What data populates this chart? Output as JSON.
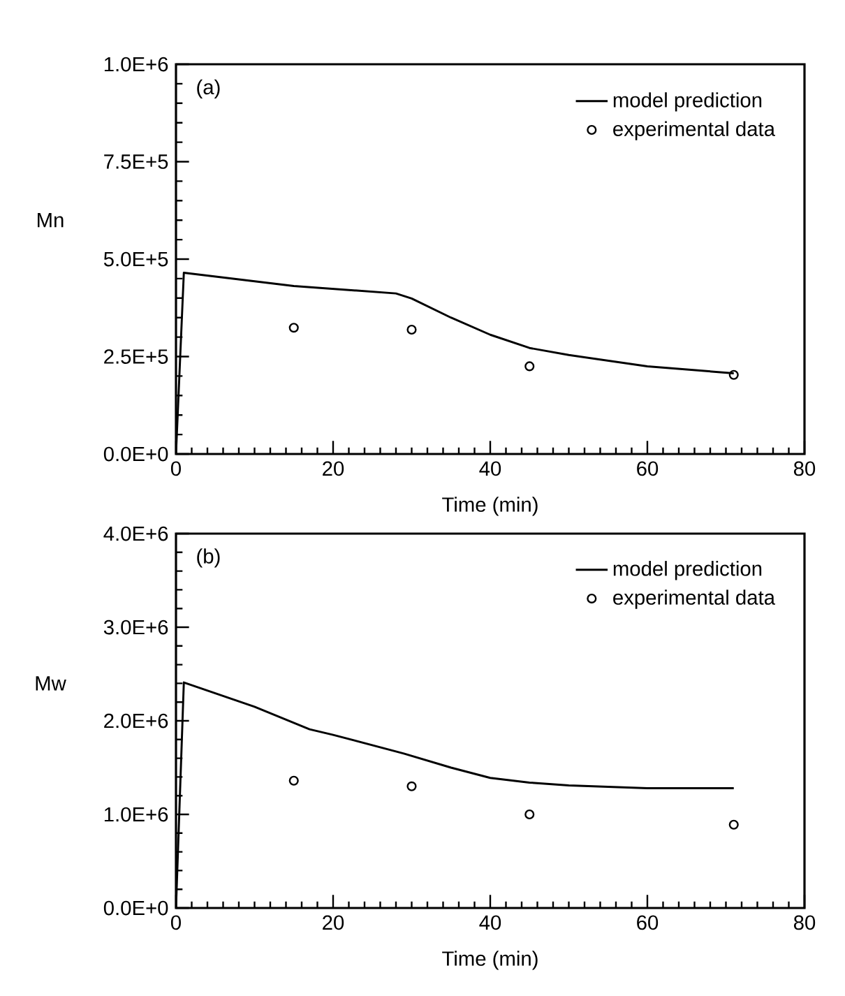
{
  "chart_data": [
    {
      "type": "line",
      "ylabel": "Mn",
      "xlabel": "Time (min)",
      "annotations": [
        "(a)"
      ],
      "legend": "top right",
      "grid": false,
      "xlim": [
        0,
        80
      ],
      "ylim": [
        0,
        1000000
      ],
      "xticks": [
        0,
        20,
        40,
        60,
        80
      ],
      "yticks": [
        {
          "value": 0,
          "label": "0.0E+0"
        },
        {
          "value": 250000,
          "label": "2.5E+5"
        },
        {
          "value": 500000,
          "label": "5.0E+5"
        },
        {
          "value": 750000,
          "label": "7.5E+5"
        },
        {
          "value": 1000000,
          "label": "1.0E+6"
        }
      ],
      "series": [
        {
          "name": "model prediction",
          "color": "#000000",
          "marker": "none",
          "line_style": "solid",
          "x": [
            0,
            1,
            15,
            28,
            30,
            35,
            40,
            45,
            50,
            60,
            71
          ],
          "values": [
            0,
            465000,
            431000,
            412000,
            399000,
            350000,
            306000,
            272000,
            254000,
            225000,
            207000
          ]
        },
        {
          "name": "experimental data",
          "type": "scatter",
          "color": "#000000",
          "marker": "circle",
          "x": [
            15,
            30,
            45,
            71
          ],
          "values": [
            324000,
            319000,
            225000,
            203000
          ]
        }
      ]
    },
    {
      "type": "line",
      "ylabel": "Mw",
      "xlabel": "Time (min)",
      "annotations": [
        "(b)"
      ],
      "legend": "top right",
      "grid": false,
      "xlim": [
        0,
        80
      ],
      "ylim": [
        0,
        4000000
      ],
      "xticks": [
        0,
        20,
        40,
        60,
        80
      ],
      "yticks": [
        {
          "value": 0,
          "label": "0.0E+0"
        },
        {
          "value": 1000000,
          "label": "1.0E+6"
        },
        {
          "value": 2000000,
          "label": "2.0E+6"
        },
        {
          "value": 3000000,
          "label": "3.0E+6"
        },
        {
          "value": 4000000,
          "label": "4.0E+6"
        }
      ],
      "series": [
        {
          "name": "model prediction",
          "color": "#000000",
          "marker": "none",
          "line_style": "solid",
          "x": [
            0,
            1,
            10,
            17,
            20,
            29,
            35,
            40,
            45,
            50,
            60,
            71
          ],
          "values": [
            0,
            2410000,
            2150000,
            1910000,
            1850000,
            1650000,
            1500000,
            1390000,
            1340000,
            1310000,
            1280000,
            1280000
          ]
        },
        {
          "name": "experimental data",
          "type": "scatter",
          "color": "#000000",
          "marker": "circle",
          "x": [
            15,
            30,
            45,
            71
          ],
          "values": [
            1360000,
            1300000,
            1000000,
            890000
          ]
        }
      ]
    }
  ]
}
